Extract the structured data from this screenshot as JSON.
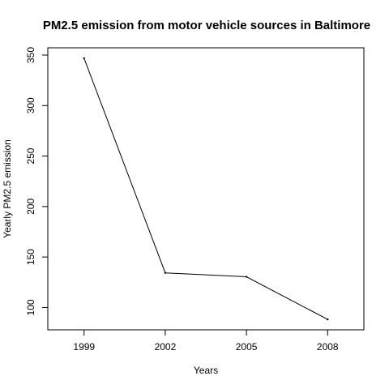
{
  "chart_data": {
    "type": "line",
    "title": "PM2.5 emission from motor vehicle sources in Baltimore",
    "xlabel": "Years",
    "ylabel": "Yearly PM2.5 emission",
    "x": [
      1999,
      2002,
      2005,
      2008
    ],
    "series": [
      {
        "values": [
          346.82,
          134.31,
          130.43,
          88.28
        ],
        "color": "#000000"
      }
    ],
    "xlim": [
      1997.66,
      2009.34
    ],
    "ylim": [
      77.9,
      357.2
    ],
    "xticks": [
      1999,
      2002,
      2005,
      2008
    ],
    "yticks": [
      100,
      150,
      200,
      250,
      300,
      350
    ],
    "xtick_labels": [
      "1999",
      "2002",
      "2005",
      "2008"
    ],
    "ytick_labels": [
      "100",
      "150",
      "200",
      "250",
      "300",
      "350"
    ],
    "grid": false,
    "legend": false
  }
}
